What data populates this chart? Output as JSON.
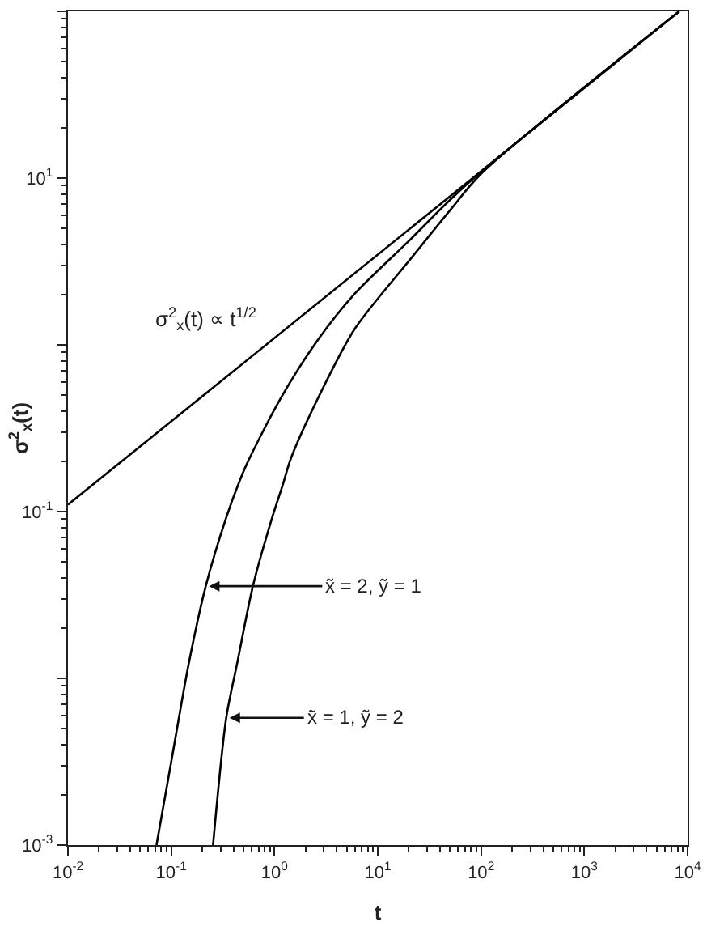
{
  "chart_data": {
    "type": "line",
    "xlabel": "t",
    "ylabel": "σ$^{2}$$_{x}$(t)",
    "log": "xy",
    "xlim": [
      0.01,
      10000
    ],
    "ylim": [
      0.001,
      100
    ],
    "xticks": [
      {
        "value": 0.01,
        "label": "10$^{-2}$"
      },
      {
        "value": 0.1,
        "label": "10$^{-1}$"
      },
      {
        "value": 1,
        "label": "10$^{0}$"
      },
      {
        "value": 10,
        "label": "10$^{1}$"
      },
      {
        "value": 100,
        "label": "10$^{2}$"
      },
      {
        "value": 1000,
        "label": "10$^{3}$"
      },
      {
        "value": 10000,
        "label": "10$^{4}$"
      }
    ],
    "yticks": [
      {
        "value": 0.001,
        "label": "10$^{-3}$"
      },
      {
        "value": 0.01,
        "label": null
      },
      {
        "value": 0.1,
        "label": "10$^{-1}$"
      },
      {
        "value": 1,
        "label": null
      },
      {
        "value": 10,
        "label": "10$^{1}$"
      },
      {
        "value": 100,
        "label": null
      }
    ],
    "line_style": "solid",
    "marker": "none",
    "series": [
      {
        "color": "#000000",
        "x": [
          0.01,
          8300
        ],
        "values": [
          0.11,
          100
        ]
      },
      {
        "color": "#000000",
        "x": [
          0.072,
          0.103,
          0.148,
          0.216,
          0.341,
          0.46,
          0.55,
          1.13,
          2.6,
          6.0,
          20,
          50,
          100,
          8300
        ],
        "values": [
          0.001,
          0.0035,
          0.0123,
          0.0357,
          0.092,
          0.153,
          0.198,
          0.47,
          1.06,
          2.03,
          4.2,
          7.4,
          10.9,
          100
        ]
      },
      {
        "color": "#000000",
        "x": [
          0.254,
          0.341,
          0.435,
          0.62,
          0.95,
          1.2,
          1.44,
          2.6,
          6.0,
          21,
          50,
          100,
          8300
        ],
        "values": [
          0.001,
          0.0058,
          0.0123,
          0.036,
          0.092,
          0.144,
          0.208,
          0.47,
          1.25,
          3.3,
          6.4,
          10.6,
          100
        ]
      }
    ],
    "annotations": [
      "σ$^{2}$$_{x}$(t) ∝ t$^{1/2}$",
      {
        "text": "x̃ = 2, ỹ = 1",
        "x": 0.216,
        "y": 0.0357
      },
      {
        "text": "x̃ = 1, ỹ = 2",
        "x": 0.341,
        "y": 0.0058
      }
    ]
  }
}
